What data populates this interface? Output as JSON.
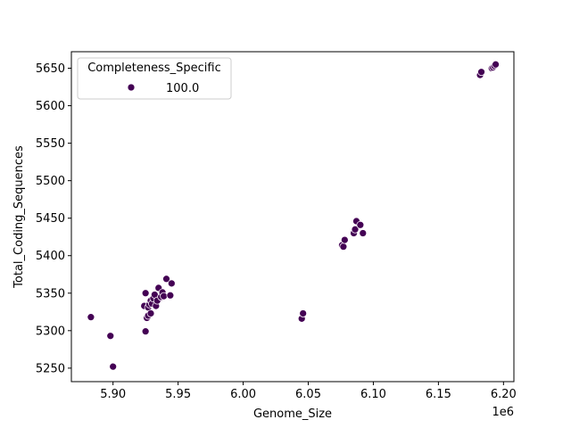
{
  "chart_data": {
    "type": "scatter",
    "xlabel": "Genome_Size",
    "ylabel": "Total_Coding_Sequences",
    "x_offset_label": "1e6",
    "xlim": [
      5.868,
      6.208
    ],
    "ylim": [
      5232,
      5672
    ],
    "x_ticks": [
      5.9,
      5.95,
      6.0,
      6.05,
      6.1,
      6.15,
      6.2
    ],
    "x_tick_labels": [
      "5.90",
      "5.95",
      "6.00",
      "6.05",
      "6.10",
      "6.15",
      "6.20"
    ],
    "y_ticks": [
      5250,
      5300,
      5350,
      5400,
      5450,
      5500,
      5550,
      5600,
      5650
    ],
    "y_tick_labels": [
      "5250",
      "5300",
      "5350",
      "5400",
      "5450",
      "5500",
      "5550",
      "5600",
      "5650"
    ],
    "grid": false,
    "legend": {
      "title": "Completeness_Specific",
      "placement": "upper-left",
      "entries": [
        {
          "label": "100.0",
          "color": "#440154"
        }
      ]
    },
    "series": [
      {
        "label": "100.0",
        "color": "#440154",
        "points": [
          {
            "x": 5.883,
            "y": 5318
          },
          {
            "x": 5.898,
            "y": 5293
          },
          {
            "x": 5.9,
            "y": 5252
          },
          {
            "x": 5.924,
            "y": 5333
          },
          {
            "x": 5.925,
            "y": 5350
          },
          {
            "x": 5.925,
            "y": 5299
          },
          {
            "x": 5.926,
            "y": 5317
          },
          {
            "x": 5.927,
            "y": 5320
          },
          {
            "x": 5.927,
            "y": 5331
          },
          {
            "x": 5.928,
            "y": 5335
          },
          {
            "x": 5.929,
            "y": 5323
          },
          {
            "x": 5.929,
            "y": 5340
          },
          {
            "x": 5.93,
            "y": 5336
          },
          {
            "x": 5.931,
            "y": 5343
          },
          {
            "x": 5.932,
            "y": 5348
          },
          {
            "x": 5.933,
            "y": 5333
          },
          {
            "x": 5.934,
            "y": 5340
          },
          {
            "x": 5.935,
            "y": 5357
          },
          {
            "x": 5.937,
            "y": 5345
          },
          {
            "x": 5.938,
            "y": 5351
          },
          {
            "x": 5.939,
            "y": 5346
          },
          {
            "x": 5.941,
            "y": 5369
          },
          {
            "x": 5.944,
            "y": 5347
          },
          {
            "x": 5.945,
            "y": 5363
          },
          {
            "x": 6.045,
            "y": 5316
          },
          {
            "x": 6.046,
            "y": 5323
          },
          {
            "x": 6.076,
            "y": 5414
          },
          {
            "x": 6.077,
            "y": 5412
          },
          {
            "x": 6.078,
            "y": 5421
          },
          {
            "x": 6.085,
            "y": 5430
          },
          {
            "x": 6.086,
            "y": 5435
          },
          {
            "x": 6.087,
            "y": 5446
          },
          {
            "x": 6.09,
            "y": 5441
          },
          {
            "x": 6.092,
            "y": 5430
          },
          {
            "x": 6.182,
            "y": 5641
          },
          {
            "x": 6.183,
            "y": 5645
          },
          {
            "x": 6.191,
            "y": 5650
          },
          {
            "x": 6.192,
            "y": 5651
          },
          {
            "x": 6.193,
            "y": 5653
          },
          {
            "x": 6.194,
            "y": 5655
          }
        ]
      }
    ]
  }
}
